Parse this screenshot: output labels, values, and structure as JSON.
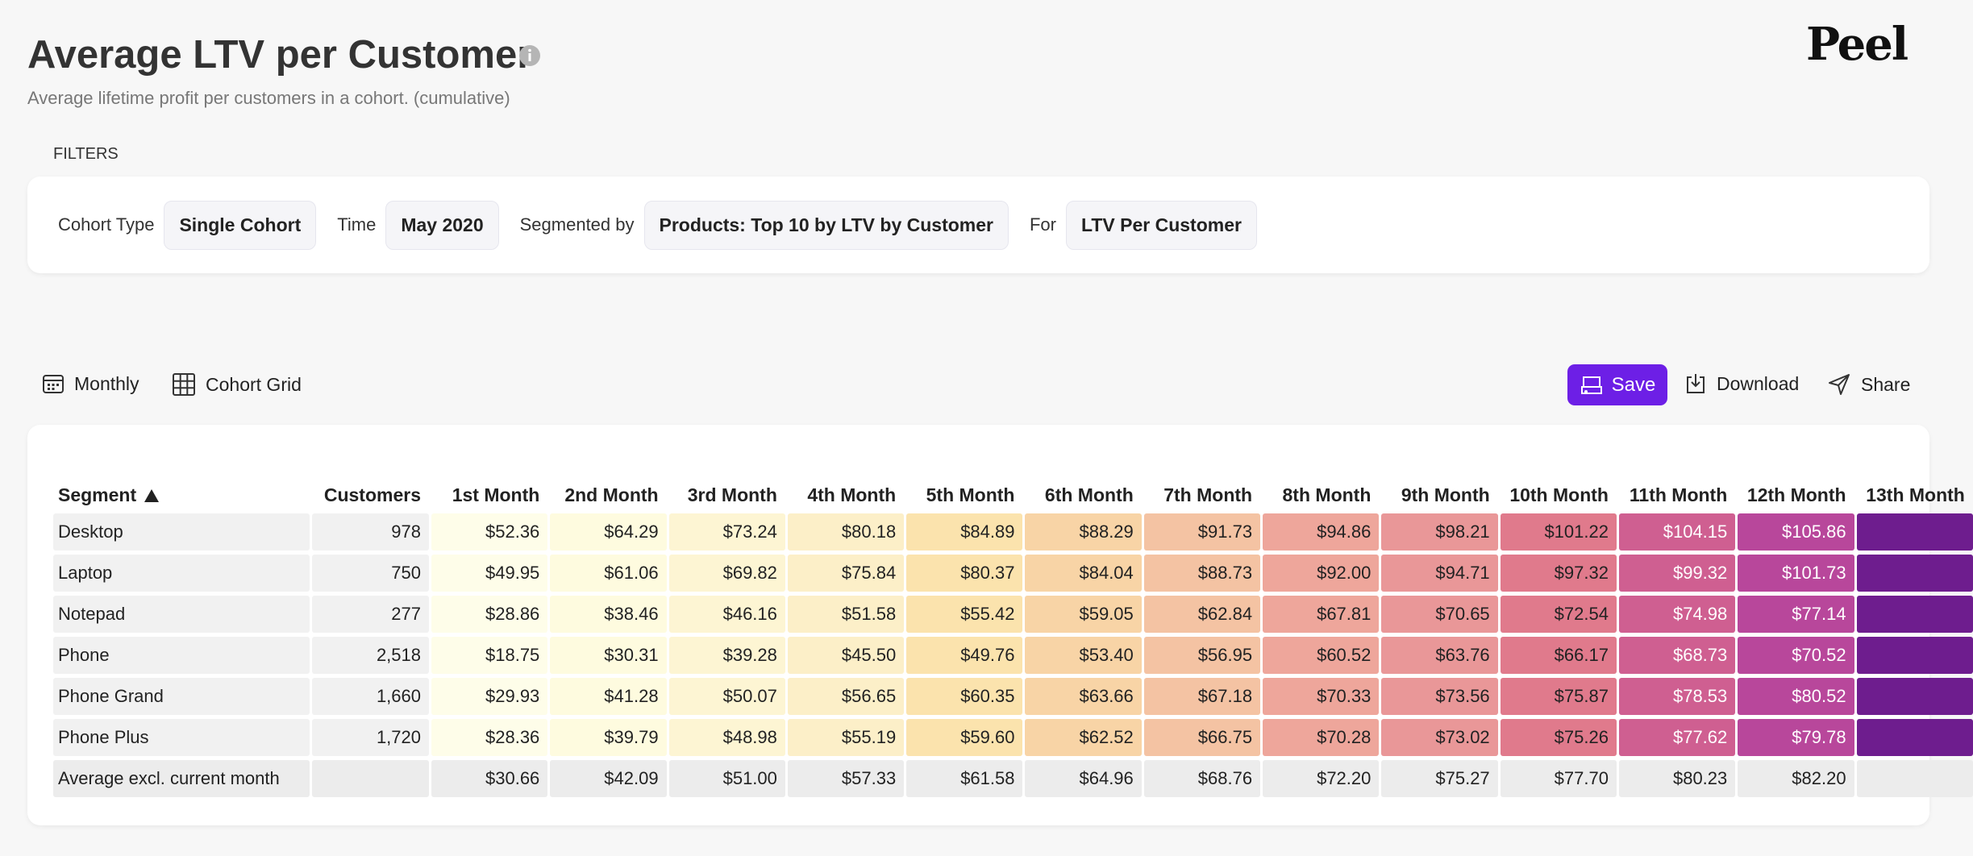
{
  "header": {
    "title": "Average LTV per Customer",
    "subtitle": "Average lifetime profit per customers in a cohort. (cumulative)",
    "logo": "Peel"
  },
  "filters": {
    "label": "FILTERS",
    "items": [
      {
        "label": "Cohort Type",
        "value": "Single Cohort"
      },
      {
        "label": "Time",
        "value": "May 2020"
      },
      {
        "label": "Segmented by",
        "value": "Products: Top 10 by LTV by Customer"
      },
      {
        "label": "For",
        "value": "LTV Per Customer"
      }
    ]
  },
  "toolbar": {
    "left": [
      "Monthly",
      "Cohort Grid"
    ],
    "save": "Save",
    "actions": [
      "Download",
      "Share"
    ]
  },
  "table": {
    "columns": [
      "Segment",
      "Customers",
      "1st Month",
      "2nd Month",
      "3rd Month",
      "4th Month",
      "5th Month",
      "6th Month",
      "7th Month",
      "8th Month",
      "9th Month",
      "10th Month",
      "11th Month",
      "12th Month",
      "13th Month"
    ],
    "heat_colors": [
      "#fefde9",
      "#fefbdf",
      "#fdf5d3",
      "#fcefc8",
      "#fbe3ad",
      "#f8d4a6",
      "#f4c3a3",
      "#eea69b",
      "#e99798",
      "#e07a8c",
      "#cf5f91",
      "#b8479b",
      "#6e1d8e"
    ],
    "rows": [
      [
        "Desktop",
        "978",
        "$52.36",
        "$64.29",
        "$73.24",
        "$80.18",
        "$84.89",
        "$88.29",
        "$91.73",
        "$94.86",
        "$98.21",
        "$101.22",
        "$104.15",
        "$105.86"
      ],
      [
        "Laptop",
        "750",
        "$49.95",
        "$61.06",
        "$69.82",
        "$75.84",
        "$80.37",
        "$84.04",
        "$88.73",
        "$92.00",
        "$94.71",
        "$97.32",
        "$99.32",
        "$101.73"
      ],
      [
        "Notepad",
        "277",
        "$28.86",
        "$38.46",
        "$46.16",
        "$51.58",
        "$55.42",
        "$59.05",
        "$62.84",
        "$67.81",
        "$70.65",
        "$72.54",
        "$74.98",
        "$77.14"
      ],
      [
        "Phone",
        "2,518",
        "$18.75",
        "$30.31",
        "$39.28",
        "$45.50",
        "$49.76",
        "$53.40",
        "$56.95",
        "$60.52",
        "$63.76",
        "$66.17",
        "$68.73",
        "$70.52"
      ],
      [
        "Phone Grand",
        "1,660",
        "$29.93",
        "$41.28",
        "$50.07",
        "$56.65",
        "$60.35",
        "$63.66",
        "$67.18",
        "$70.33",
        "$73.56",
        "$75.87",
        "$78.53",
        "$80.52"
      ],
      [
        "Phone Plus",
        "1,720",
        "$28.36",
        "$39.79",
        "$48.98",
        "$55.19",
        "$59.60",
        "$62.52",
        "$66.75",
        "$70.28",
        "$73.02",
        "$75.26",
        "$77.62",
        "$79.78"
      ]
    ],
    "footer": {
      "label": "Average excl. current month",
      "values": [
        "$30.66",
        "$42.09",
        "$51.00",
        "$57.33",
        "$61.58",
        "$64.96",
        "$68.76",
        "$72.20",
        "$75.27",
        "$77.70",
        "$80.23",
        "$82.20"
      ]
    }
  }
}
